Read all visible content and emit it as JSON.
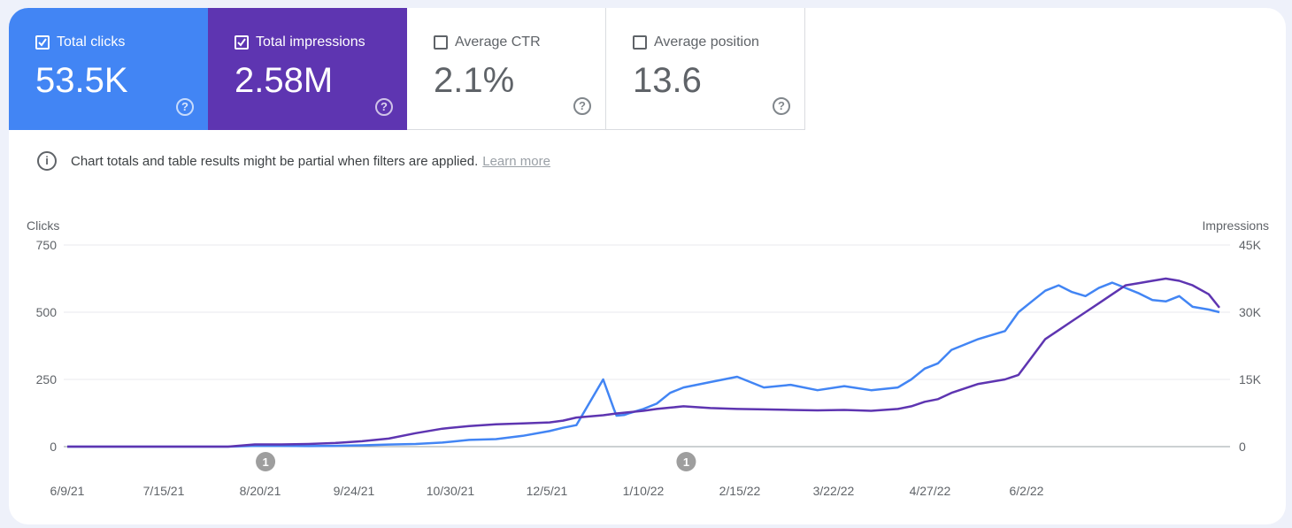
{
  "metrics": [
    {
      "label": "Total clicks",
      "value": "53.5K",
      "checked": true,
      "color": "#4285f4"
    },
    {
      "label": "Total impressions",
      "value": "2.58M",
      "checked": true,
      "color": "#5e35b1"
    },
    {
      "label": "Average CTR",
      "value": "2.1%",
      "checked": false
    },
    {
      "label": "Average position",
      "value": "13.6",
      "checked": false
    }
  ],
  "notice": {
    "text": "Chart totals and table results might be partial when filters are applied.",
    "link": "Learn more"
  },
  "chart_data": {
    "type": "line",
    "xlabel": "",
    "y_left_label": "Clicks",
    "y_right_label": "Impressions",
    "y_left_ticks": [
      "750",
      "500",
      "250",
      "0"
    ],
    "y_right_ticks": [
      "45K",
      "30K",
      "15K",
      "0"
    ],
    "y_left_lim": [
      0,
      750
    ],
    "y_right_lim": [
      0,
      45000
    ],
    "x_ticks": [
      "6/9/21",
      "7/15/21",
      "8/20/21",
      "9/24/21",
      "10/30/21",
      "12/5/21",
      "1/10/22",
      "2/15/22",
      "3/22/22",
      "4/27/22",
      "6/2/22"
    ],
    "x_range": [
      "6/9/21",
      "6/5/22"
    ],
    "grid": true,
    "annotations": [
      {
        "date": "8/22/21",
        "label": "1"
      },
      {
        "date": "1/26/22",
        "label": "1"
      }
    ],
    "series": [
      {
        "name": "Clicks",
        "axis": "left",
        "color": "#4285f4",
        "x": [
          0,
          20,
          40,
          60,
          70,
          80,
          90,
          100,
          110,
          120,
          130,
          140,
          150,
          160,
          170,
          180,
          185,
          190,
          200,
          204,
          205,
          208,
          210,
          215,
          220,
          225,
          230,
          240,
          250,
          260,
          270,
          280,
          290,
          300,
          310,
          315,
          320,
          325,
          330,
          340,
          350,
          355,
          360,
          365,
          370,
          375,
          380,
          385,
          390,
          395,
          400,
          405,
          410,
          415,
          420,
          426,
          430
        ],
        "y": [
          0,
          0,
          0,
          0,
          3,
          3,
          2,
          3,
          5,
          8,
          10,
          15,
          25,
          28,
          40,
          58,
          70,
          80,
          250,
          140,
          115,
          118,
          125,
          140,
          160,
          200,
          220,
          240,
          260,
          220,
          230,
          210,
          225,
          210,
          220,
          250,
          290,
          310,
          360,
          400,
          430,
          500,
          540,
          580,
          600,
          575,
          560,
          590,
          610,
          590,
          570,
          545,
          540,
          560,
          520,
          510,
          500
        ]
      },
      {
        "name": "Impressions",
        "axis": "right",
        "color": "#5e35b1",
        "x": [
          0,
          20,
          40,
          60,
          70,
          80,
          90,
          100,
          110,
          120,
          130,
          140,
          150,
          160,
          170,
          180,
          185,
          190,
          200,
          205,
          210,
          215,
          220,
          225,
          230,
          240,
          250,
          260,
          270,
          280,
          290,
          300,
          310,
          315,
          320,
          325,
          330,
          340,
          350,
          355,
          360,
          365,
          370,
          375,
          380,
          385,
          390,
          395,
          400,
          405,
          410,
          415,
          420,
          426,
          430
        ],
        "y": [
          0,
          0,
          0,
          0,
          500,
          500,
          600,
          800,
          1200,
          1800,
          3000,
          4000,
          4600,
          5000,
          5200,
          5400,
          5800,
          6500,
          7000,
          7400,
          7700,
          8000,
          8400,
          8700,
          9000,
          8600,
          8400,
          8300,
          8200,
          8100,
          8200,
          8000,
          8400,
          9000,
          10000,
          10600,
          12000,
          14000,
          15000,
          16000,
          20000,
          24000,
          26000,
          28000,
          30000,
          32000,
          34000,
          36000,
          36500,
          37000,
          37500,
          37000,
          36000,
          34000,
          31000
        ]
      }
    ]
  }
}
